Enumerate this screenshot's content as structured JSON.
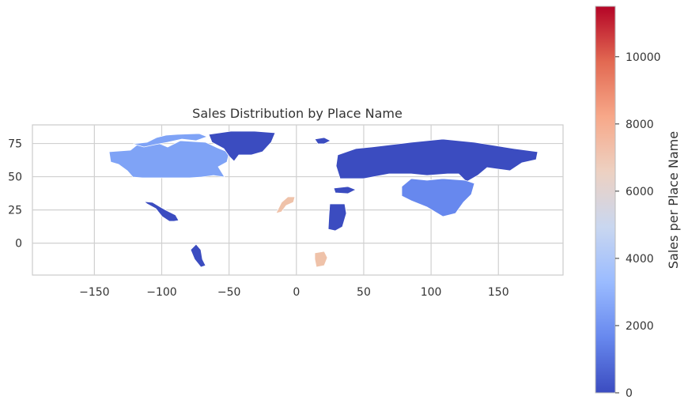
{
  "title": "Sales Distribution by Place Name",
  "colorbar_label": "Sales per Place Name",
  "colormap": "coolwarm",
  "colormap_stops": [
    "#3b4cc0",
    "#6788ee",
    "#9abbff",
    "#c9d7f0",
    "#edd1c2",
    "#f7a889",
    "#e26952",
    "#b40426"
  ],
  "x_axis": {
    "ticks": [
      -150,
      -100,
      -50,
      0,
      50,
      100,
      150
    ],
    "labels": [
      "−150",
      "−100",
      "−50",
      "0",
      "50",
      "100",
      "150"
    ],
    "range": [
      -196,
      198
    ]
  },
  "y_axis": {
    "ticks": [
      75,
      50,
      25,
      0
    ],
    "labels": [
      "75",
      "50",
      "25",
      "0"
    ],
    "range": [
      -24,
      89
    ]
  },
  "colorbar": {
    "ticks": [
      0,
      2000,
      4000,
      6000,
      8000,
      10000
    ],
    "labels": [
      "0",
      "2000",
      "4000",
      "6000",
      "8000",
      "10000"
    ],
    "range": [
      0,
      11500
    ]
  },
  "chart_data": {
    "type": "choropleth",
    "grid": true,
    "regions": [
      {
        "name": "Canada",
        "value": 2600,
        "color": "#7fa3f6"
      },
      {
        "name": "Greenland",
        "value": 0,
        "color": "#3b4cc0"
      },
      {
        "name": "Mexico",
        "value": 0,
        "color": "#3b4cc0"
      },
      {
        "name": "Peru",
        "value": 0,
        "color": "#3b4cc0"
      },
      {
        "name": "Western Sahara",
        "value": 7000,
        "color": "#efc2a9"
      },
      {
        "name": "Sudan",
        "value": 0,
        "color": "#3b4cc0"
      },
      {
        "name": "Angola",
        "value": 7000,
        "color": "#efc2a9"
      },
      {
        "name": "Russia",
        "value": 0,
        "color": "#3b4cc0"
      },
      {
        "name": "Norway",
        "value": 0,
        "color": "#3b4cc0"
      },
      {
        "name": "Turkey",
        "value": 0,
        "color": "#3b4cc0"
      },
      {
        "name": "China",
        "value": 2000,
        "color": "#6788ee"
      }
    ]
  }
}
